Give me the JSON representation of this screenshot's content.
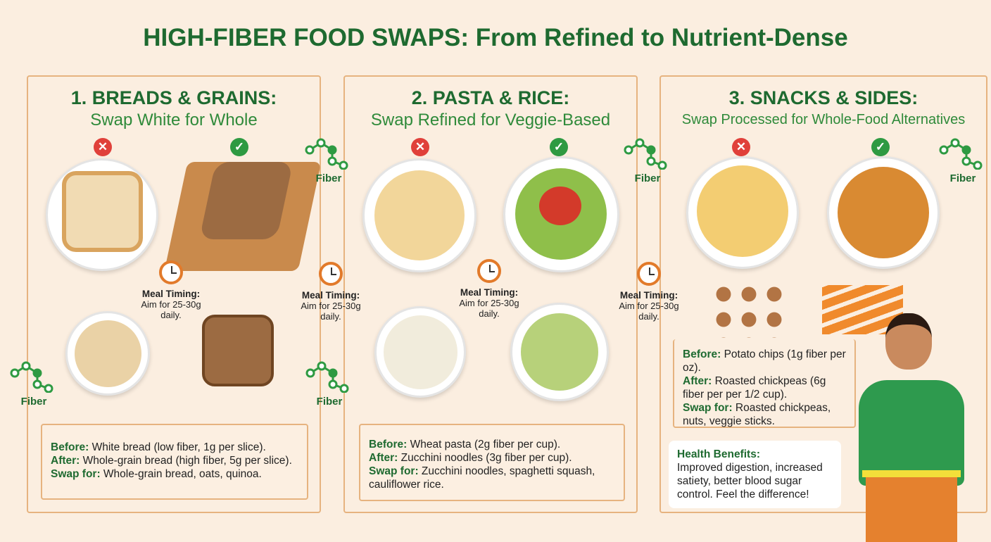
{
  "title": "HIGH-FIBER FOOD SWAPS: From Refined to Nutrient-Dense",
  "panels": [
    {
      "heading": "1. BREADS & GRAINS:",
      "subheading": "Swap White for Whole",
      "before_label": "Before:",
      "before": " White bread (low fiber, 1g per slice).",
      "after_label": "After:",
      "after": " Whole-grain bread (high fiber, 5g per slice).",
      "swap_label": "Swap for:",
      "swap": " Whole-grain bread, oats, quinoa."
    },
    {
      "heading": "2. PASTA & RICE:",
      "subheading": "Swap Refined for Veggie-Based",
      "before_label": "Before:",
      "before": " Wheat pasta (2g fiber per cup).",
      "after_label": "After:",
      "after": " Zucchini noodles (3g fiber per cup).",
      "swap_label": "Swap for:",
      "swap": " Zucchini noodles, spaghetti squash, cauliflower rice."
    },
    {
      "heading": "3. SNACKS & SIDES:",
      "subheading": "Swap Processed for Whole-Food Alternatives",
      "before_label": "Before:",
      "before": " Potato chips (1g fiber per oz).",
      "after_label": "After:",
      "after": " Roasted chickpeas (6g fiber per per 1/2 cup).",
      "swap_label": "Swap for:",
      "swap": " Roasted chickpeas, nuts, veggie sticks."
    }
  ],
  "meal_timing": {
    "label": "Meal Timing:",
    "text": "Aim for 25-30g daily."
  },
  "fiber_label": "Fiber",
  "badges": {
    "bad": "✕",
    "good": "✓"
  },
  "health": {
    "label": "Health Benefits:",
    "text": "Improved digestion, increased satiety, better blood sugar control. Feel the difference!"
  },
  "colors": {
    "title": "#1e6a30",
    "bad": "#e0403a",
    "good": "#2e9a42",
    "border": "#e6b37f",
    "background": "#fbeee0"
  }
}
